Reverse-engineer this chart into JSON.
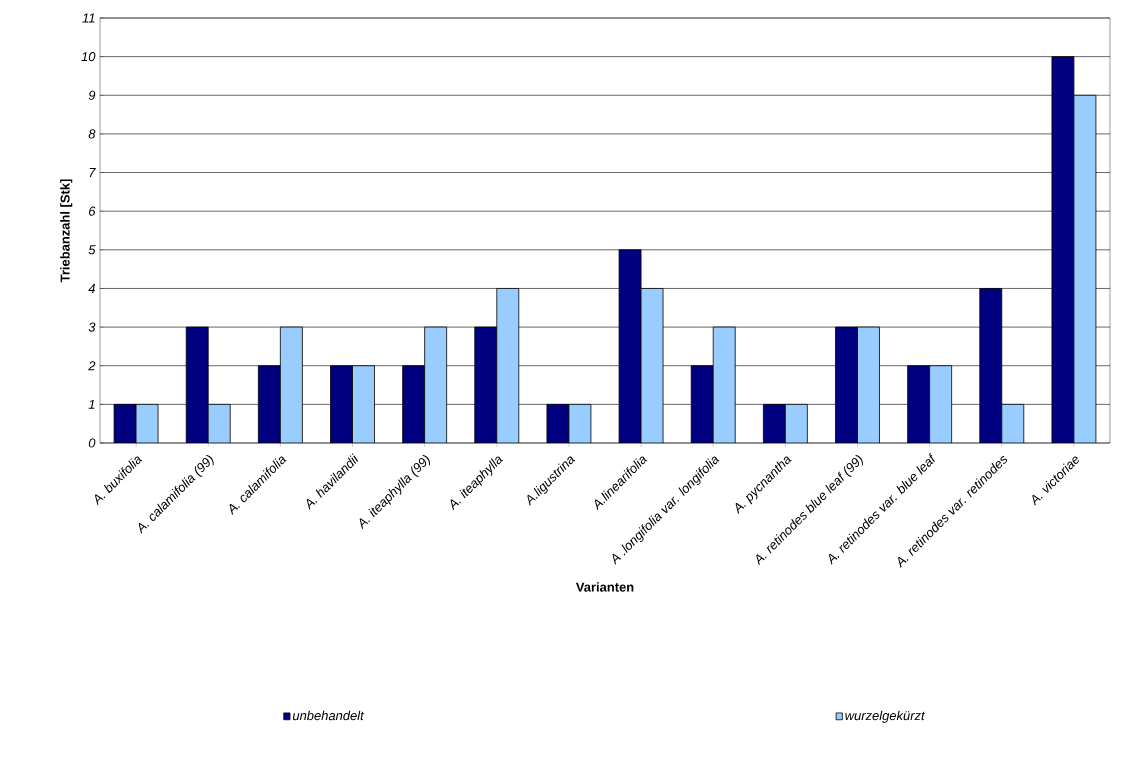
{
  "chart_data": {
    "type": "bar",
    "xlabel": "Varianten",
    "ylabel": "Triebanzahl [Stk]",
    "categories": [
      "A. buxifolia",
      "A. calamifolia (99)",
      "A. calamifolia",
      "A. havilandii",
      "A. iteaphylla (99)",
      "A. iteaphylla",
      "A.ligustrina",
      "A.linearifolia",
      "A .longifolia var. longifolia",
      "A. pycnantha",
      "A. retinodes blue leaf (99)",
      "A. retinodes var. blue leaf",
      "A. retinodes var. retinodes",
      "A. victoriae"
    ],
    "series": [
      {
        "name": "unbehandelt",
        "color": "#000080",
        "values": [
          1,
          3,
          2,
          2,
          2,
          3,
          1,
          5,
          2,
          1,
          3,
          2,
          4,
          10
        ]
      },
      {
        "name": "wurzelgekürzt",
        "color": "#99ccff",
        "values": [
          1,
          1,
          3,
          2,
          3,
          4,
          1,
          4,
          3,
          1,
          3,
          2,
          1,
          9
        ]
      }
    ],
    "ylim": [
      0,
      11
    ],
    "yticks": [
      0,
      1,
      2,
      3,
      4,
      5,
      6,
      7,
      8,
      9,
      10,
      11
    ],
    "grid": "y",
    "legend": "bottom"
  }
}
